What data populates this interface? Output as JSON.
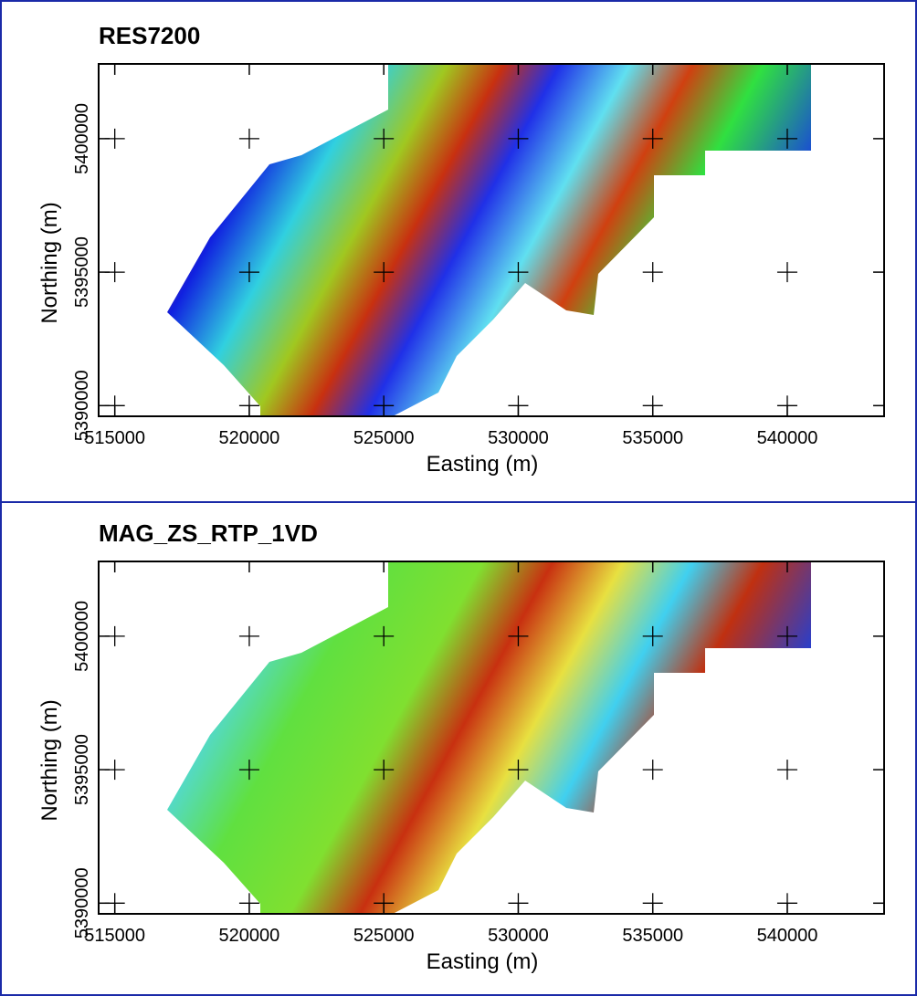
{
  "chart_data": [
    {
      "type": "map",
      "title": "RES7200",
      "xlabel": "Easting (m)",
      "ylabel": "Northing (m)",
      "xlim": [
        514400,
        543600
      ],
      "ylim": [
        5389600,
        5402800
      ],
      "xticks": [
        515000,
        520000,
        525000,
        530000,
        535000,
        540000
      ],
      "yticks": [
        5390000,
        5395000,
        5400000
      ]
    },
    {
      "type": "map",
      "title": "MAG_ZS_RTP_1VD",
      "xlabel": "Easting (m)",
      "ylabel": "Northing (m)",
      "xlim": [
        514400,
        543600
      ],
      "ylim": [
        5389600,
        5402800
      ],
      "xticks": [
        515000,
        520000,
        525000,
        530000,
        535000,
        540000
      ],
      "yticks": [
        5390000,
        5395000,
        5400000
      ]
    }
  ]
}
